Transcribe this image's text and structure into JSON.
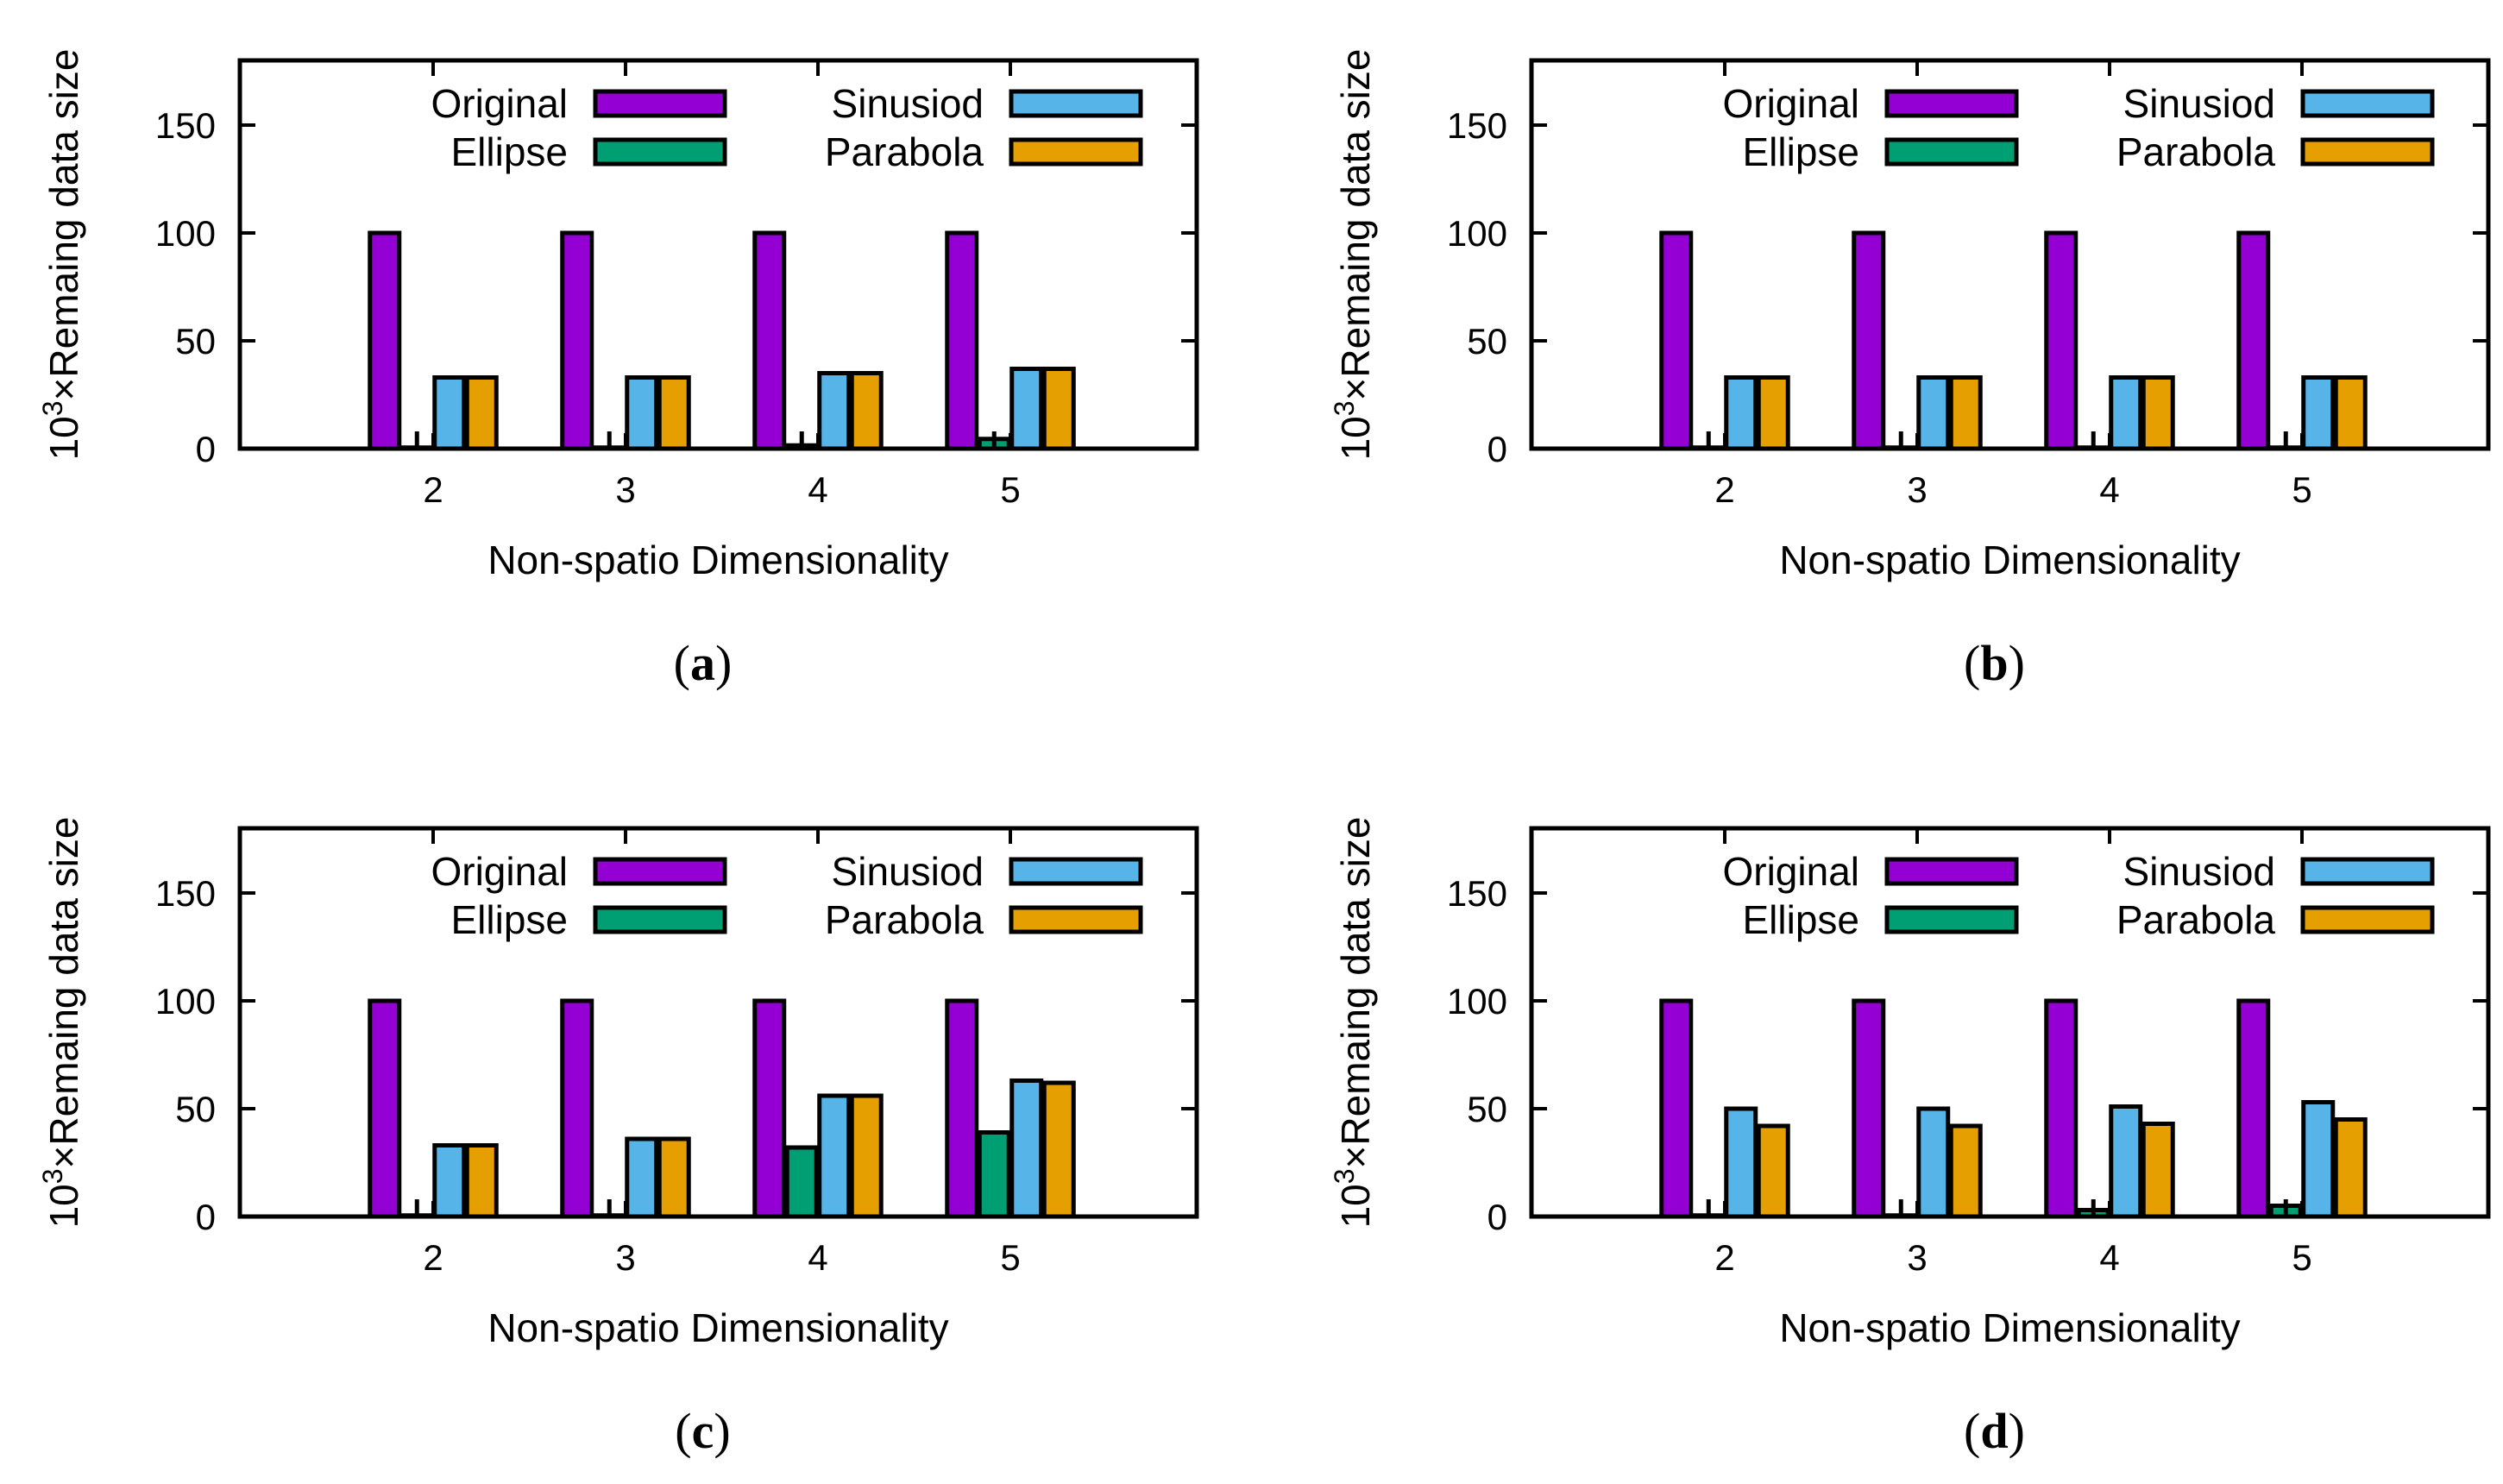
{
  "figure": {
    "panel_order": [
      "a",
      "b",
      "c",
      "d"
    ]
  },
  "colors": {
    "Original": "#9400d3",
    "Ellipse": "#009e73",
    "Sinusiod": "#56b4e9",
    "Parabola": "#e69f00",
    "axis": "#000000",
    "errorbar": "#000000"
  },
  "chart_data": [
    {
      "panel": "a",
      "caption": {
        "open": "(",
        "letter": "a",
        "close": ")"
      },
      "type": "bar",
      "xlabel": "Non-spatio Dimensionality",
      "ylabel_prefix": "10",
      "ylabel_exp": "3",
      "ylabel_rest": "×Remaing data size",
      "ylim": [
        0,
        180
      ],
      "yticks": [
        "0",
        "50",
        "100",
        "150"
      ],
      "categories": [
        "2",
        "3",
        "4",
        "5"
      ],
      "legend": [
        "Original",
        "Sinusiod",
        "Ellipse",
        "Parabola"
      ],
      "series": [
        {
          "name": "Original",
          "values": [
            100,
            100,
            100,
            100
          ]
        },
        {
          "name": "Ellipse",
          "values": [
            0.5,
            0.5,
            1.5,
            4.5
          ]
        },
        {
          "name": "Sinusiod",
          "values": [
            33,
            33,
            35,
            37
          ]
        },
        {
          "name": "Parabola",
          "values": [
            33,
            33,
            35,
            37
          ]
        }
      ],
      "errorbars": [
        {
          "series": "Ellipse",
          "values": [
            8,
            8,
            8,
            8
          ]
        }
      ]
    },
    {
      "panel": "b",
      "caption": {
        "open": "(",
        "letter": "b",
        "close": ")"
      },
      "type": "bar",
      "xlabel": "Non-spatio Dimensionality",
      "ylabel_prefix": "10",
      "ylabel_exp": "3",
      "ylabel_rest": "×Remaing data size",
      "ylim": [
        0,
        180
      ],
      "yticks": [
        "0",
        "50",
        "100",
        "150"
      ],
      "categories": [
        "2",
        "3",
        "4",
        "5"
      ],
      "legend": [
        "Original",
        "Sinusiod",
        "Ellipse",
        "Parabola"
      ],
      "series": [
        {
          "name": "Original",
          "values": [
            100,
            100,
            100,
            100
          ]
        },
        {
          "name": "Ellipse",
          "values": [
            0.5,
            0.5,
            0.5,
            0.5
          ]
        },
        {
          "name": "Sinusiod",
          "values": [
            33,
            33,
            33,
            33
          ]
        },
        {
          "name": "Parabola",
          "values": [
            33,
            33,
            33,
            33
          ]
        }
      ],
      "errorbars": [
        {
          "series": "Ellipse",
          "values": [
            8,
            8,
            8,
            8
          ]
        }
      ]
    },
    {
      "panel": "c",
      "caption": {
        "open": "(",
        "letter": "c",
        "close": ")"
      },
      "type": "bar",
      "xlabel": "Non-spatio Dimensionality",
      "ylabel_prefix": "10",
      "ylabel_exp": "3",
      "ylabel_rest": "×Remaing data size",
      "ylim": [
        0,
        180
      ],
      "yticks": [
        "0",
        "50",
        "100",
        "150"
      ],
      "categories": [
        "2",
        "3",
        "4",
        "5"
      ],
      "legend": [
        "Original",
        "Sinusiod",
        "Ellipse",
        "Parabola"
      ],
      "series": [
        {
          "name": "Original",
          "values": [
            100,
            100,
            100,
            100
          ]
        },
        {
          "name": "Ellipse",
          "values": [
            0.5,
            0.5,
            32,
            39
          ]
        },
        {
          "name": "Sinusiod",
          "values": [
            33,
            36,
            56,
            63
          ]
        },
        {
          "name": "Parabola",
          "values": [
            33,
            36,
            56,
            62
          ]
        }
      ],
      "errorbars": [
        {
          "series": "Ellipse",
          "values": [
            8,
            8,
            null,
            null
          ]
        }
      ]
    },
    {
      "panel": "d",
      "caption": {
        "open": "(",
        "letter": "d",
        "close": ")"
      },
      "type": "bar",
      "xlabel": "Non-spatio Dimensionality",
      "ylabel_prefix": "10",
      "ylabel_exp": "3",
      "ylabel_rest": "×Remaing data size",
      "ylim": [
        0,
        180
      ],
      "yticks": [
        "0",
        "50",
        "100",
        "150"
      ],
      "categories": [
        "2",
        "3",
        "4",
        "5"
      ],
      "legend": [
        "Original",
        "Sinusiod",
        "Ellipse",
        "Parabola"
      ],
      "series": [
        {
          "name": "Original",
          "values": [
            100,
            100,
            100,
            100
          ]
        },
        {
          "name": "Ellipse",
          "values": [
            0.5,
            0.5,
            3,
            5
          ]
        },
        {
          "name": "Sinusiod",
          "values": [
            50,
            50,
            51,
            53
          ]
        },
        {
          "name": "Parabola",
          "values": [
            42,
            42,
            43,
            45
          ]
        }
      ],
      "errorbars": [
        {
          "series": "Ellipse",
          "values": [
            8,
            8,
            8,
            8
          ]
        }
      ]
    }
  ]
}
